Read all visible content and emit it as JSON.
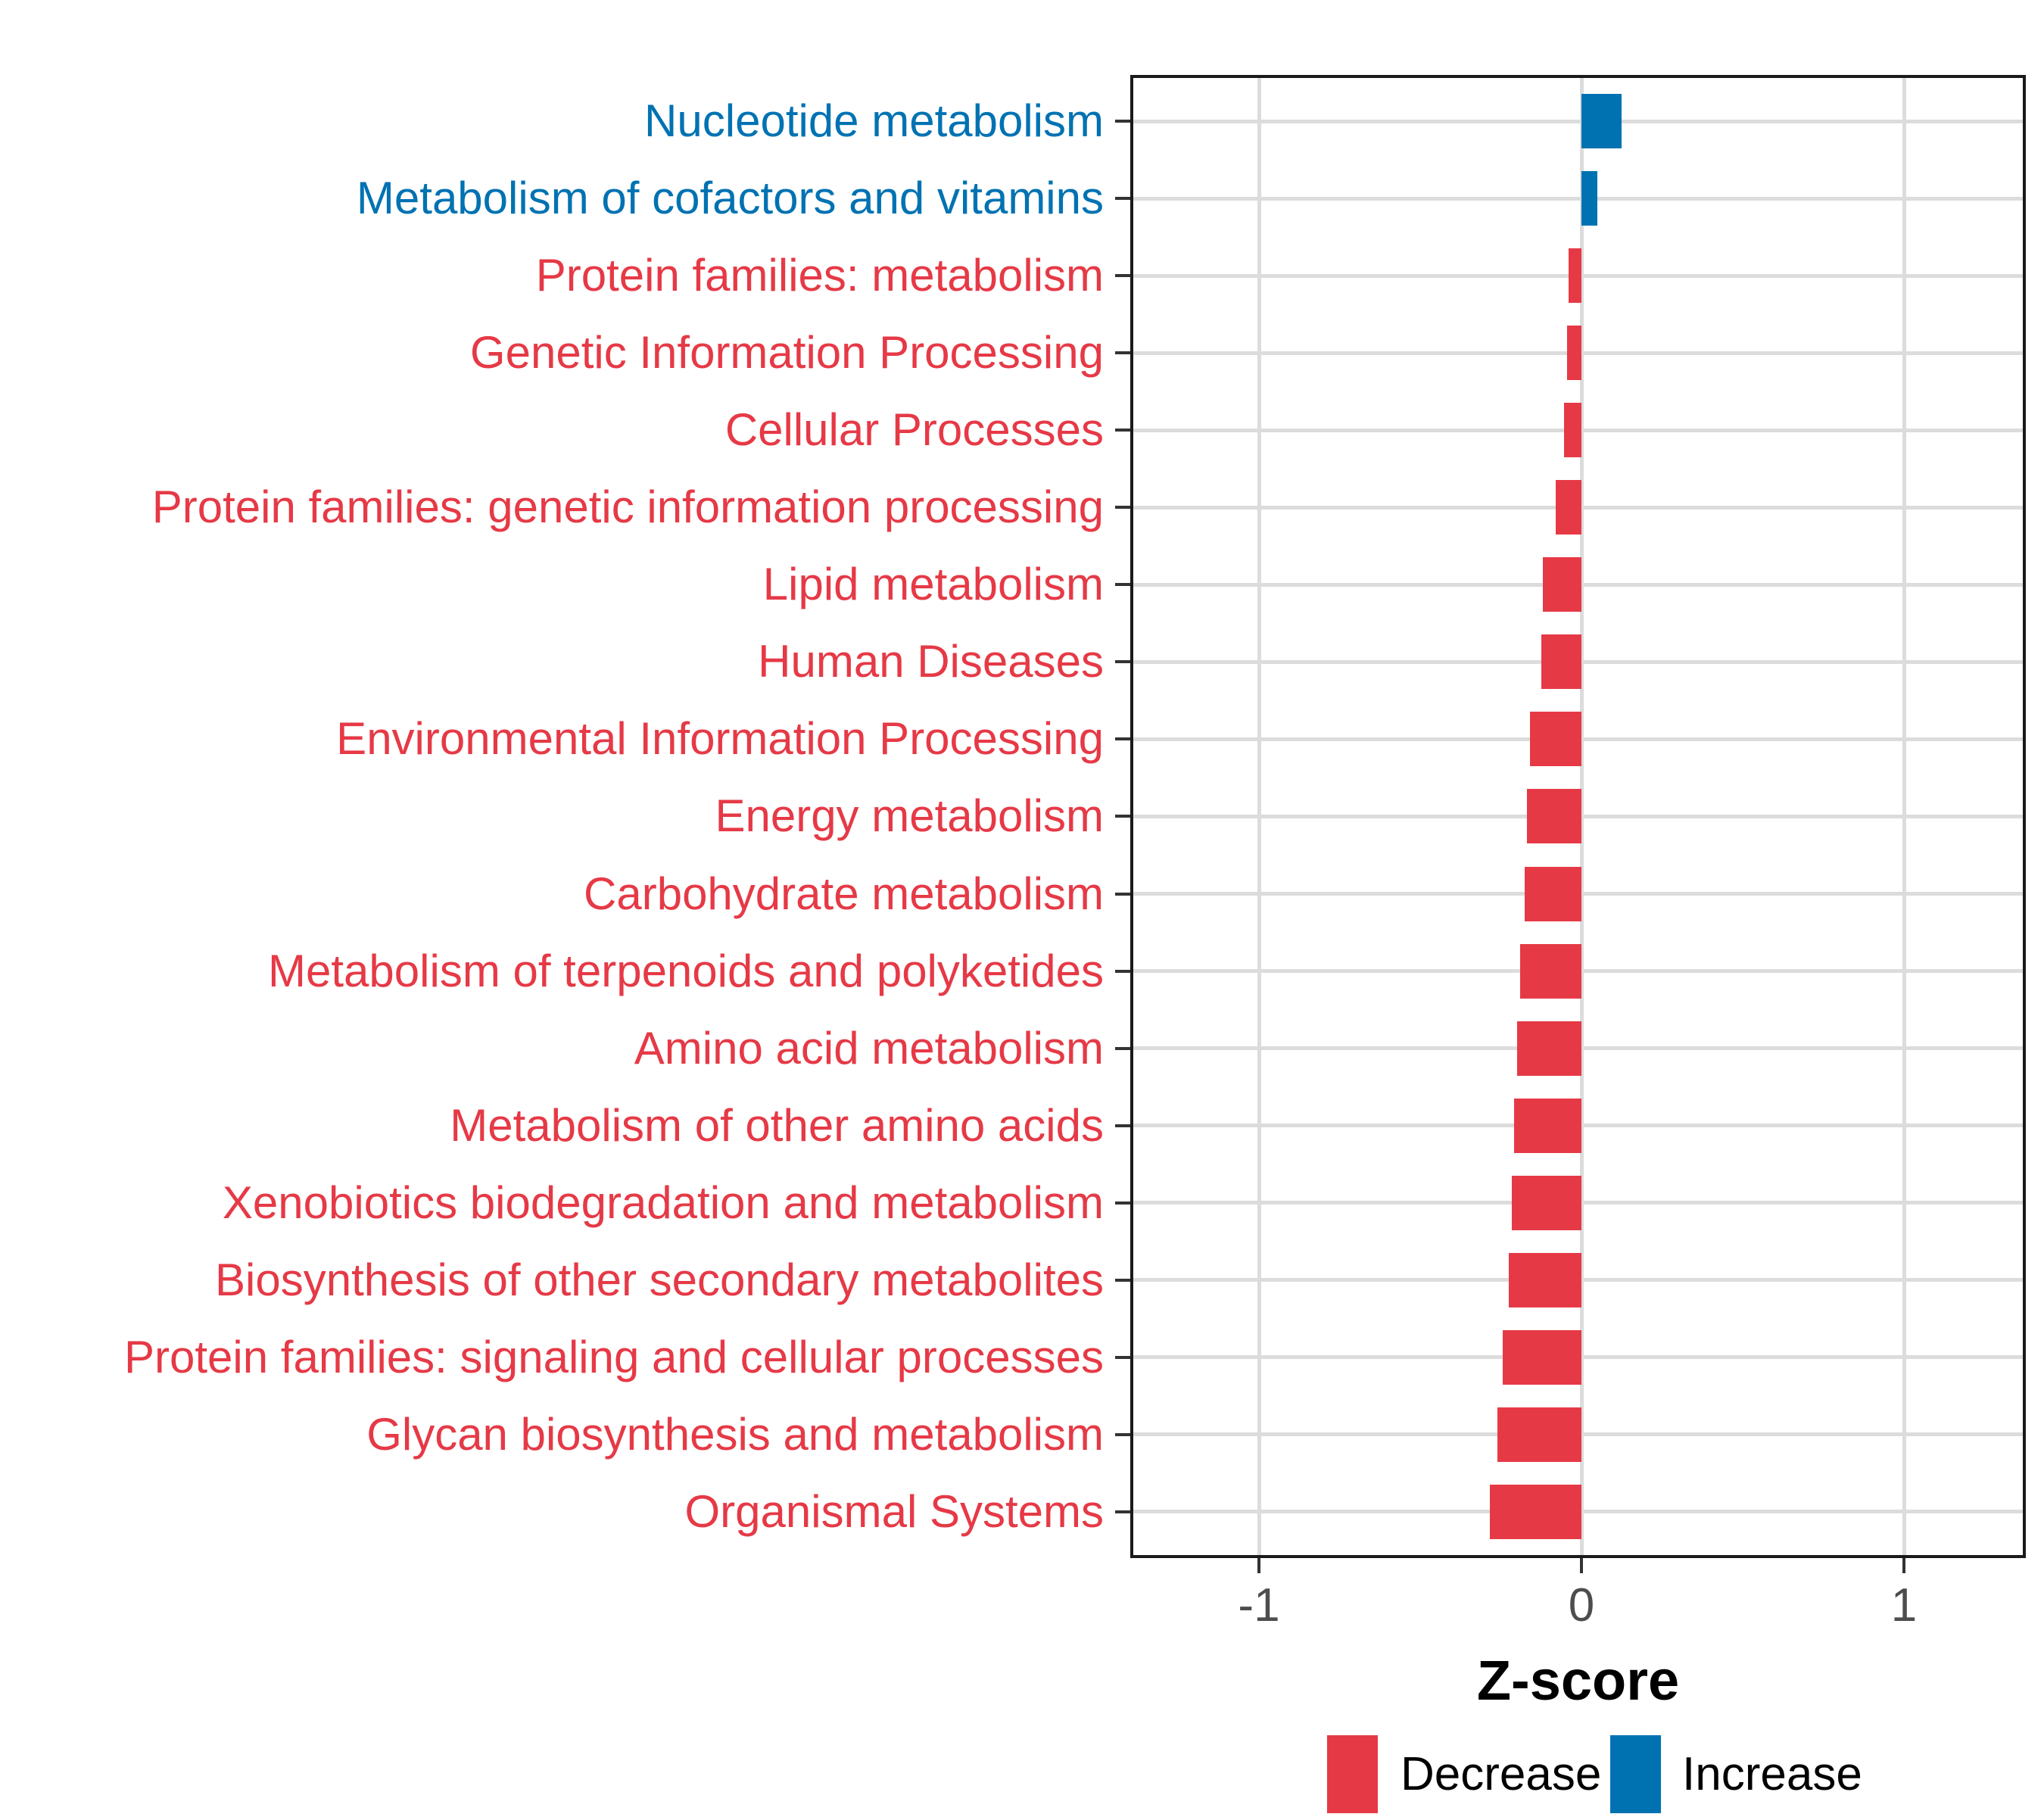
{
  "chart_data": {
    "type": "bar",
    "orientation": "horizontal",
    "title": "",
    "xlabel": "Z-score",
    "x_ticks": [
      "-1",
      "0",
      "1"
    ],
    "x_tick_values": [
      -1,
      0,
      1
    ],
    "xlim": [
      -1.4,
      1.37
    ],
    "grid": "major-only",
    "legend_position": "bottom",
    "bars": [
      {
        "label": "Nucleotide metabolism",
        "value": 0.125,
        "group": "Increase"
      },
      {
        "label": "Metabolism of cofactors and vitamins",
        "value": 0.05,
        "group": "Increase"
      },
      {
        "label": "Protein families: metabolism",
        "value": -0.04,
        "group": "Decrease"
      },
      {
        "label": "Genetic Information Processing",
        "value": -0.045,
        "group": "Decrease"
      },
      {
        "label": "Cellular Processes",
        "value": -0.055,
        "group": "Decrease"
      },
      {
        "label": "Protein families: genetic information processing",
        "value": -0.08,
        "group": "Decrease"
      },
      {
        "label": "Lipid metabolism",
        "value": -0.12,
        "group": "Decrease"
      },
      {
        "label": "Human Diseases",
        "value": -0.125,
        "group": "Decrease"
      },
      {
        "label": "Environmental Information Processing",
        "value": -0.16,
        "group": "Decrease"
      },
      {
        "label": "Energy metabolism",
        "value": -0.17,
        "group": "Decrease"
      },
      {
        "label": "Carbohydrate metabolism",
        "value": -0.175,
        "group": "Decrease"
      },
      {
        "label": "Metabolism of terpenoids and polyketides",
        "value": -0.19,
        "group": "Decrease"
      },
      {
        "label": "Amino acid metabolism",
        "value": -0.2,
        "group": "Decrease"
      },
      {
        "label": "Metabolism of other amino acids",
        "value": -0.21,
        "group": "Decrease"
      },
      {
        "label": "Xenobiotics biodegradation and metabolism",
        "value": -0.215,
        "group": "Decrease"
      },
      {
        "label": "Biosynthesis of other secondary metabolites",
        "value": -0.225,
        "group": "Decrease"
      },
      {
        "label": "Protein families: signaling and cellular processes",
        "value": -0.245,
        "group": "Decrease"
      },
      {
        "label": "Glycan biosynthesis and metabolism",
        "value": -0.26,
        "group": "Decrease"
      },
      {
        "label": "Organismal Systems",
        "value": -0.285,
        "group": "Decrease"
      }
    ],
    "legend": [
      {
        "label": "Decrease",
        "color": "#E63946"
      },
      {
        "label": "Increase",
        "color": "#0072B2"
      }
    ]
  },
  "colors": {
    "decrease": "#E63946",
    "increase": "#0072B2",
    "grid": "#DCDCDC",
    "tick": "#333333",
    "tick_label": "#4D4D4D",
    "panel_border": "#1A1A1A"
  }
}
